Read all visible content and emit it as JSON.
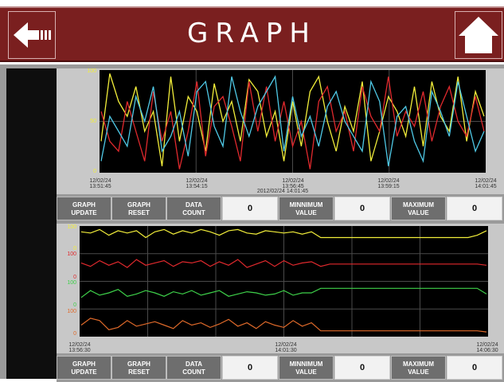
{
  "header": {
    "title": "GRAPH"
  },
  "top_chart": {
    "y_ticks": [
      "100",
      "50",
      "0"
    ],
    "x_ticks": [
      "12/02/24\n13:51:45",
      "12/02/24\n13:54:15",
      "12/02/24\n13:56:45",
      "12/02/24\n13:59:15",
      "12/02/24\n14:01:45"
    ],
    "cursor_label": "2012/02/24 14:01:45",
    "colors": {
      "yellow": "#f2ee3a",
      "red": "#e0292d",
      "cyan": "#4fc9e6"
    },
    "chart_data": {
      "type": "line",
      "ylim": [
        0,
        100
      ],
      "series": [
        {
          "values": [
            30,
            98,
            70,
            55,
            85,
            40,
            60,
            5,
            95,
            30,
            75,
            60,
            20,
            88,
            50,
            70,
            30,
            92,
            80,
            35,
            60,
            10,
            70,
            25,
            80,
            95,
            50,
            20,
            65,
            40,
            90,
            10,
            40,
            75,
            60,
            35,
            85,
            25,
            90,
            55,
            40,
            95,
            30,
            80,
            55
          ]
        },
        {
          "values": [
            60,
            30,
            20,
            70,
            40,
            10,
            80,
            30,
            60,
            2,
            40,
            90,
            15,
            65,
            75,
            45,
            10,
            90,
            40,
            85,
            30,
            70,
            25,
            50,
            2,
            70,
            85,
            40,
            60,
            20,
            85,
            55,
            40,
            95,
            35,
            60,
            45,
            80,
            30,
            65,
            85,
            50,
            35,
            75,
            40
          ]
        },
        {
          "values": [
            10,
            55,
            40,
            25,
            75,
            50,
            85,
            20,
            35,
            60,
            15,
            80,
            90,
            45,
            25,
            95,
            60,
            35,
            65,
            80,
            95,
            20,
            75,
            35,
            55,
            25,
            65,
            80,
            50,
            35,
            20,
            90,
            70,
            5,
            55,
            65,
            30,
            10,
            80,
            60,
            35,
            90,
            55,
            20,
            40
          ]
        }
      ]
    }
  },
  "bottom_chart": {
    "y_ticks": [
      "100",
      "0",
      "100",
      "0",
      "100",
      "0",
      "100",
      "0"
    ],
    "x_ticks": [
      "12/02/24\n13:56:30",
      "12/02/24\n14:01:30",
      "12/02/24\n14:06:30"
    ],
    "colors": {
      "yellow": "#f2ee3a",
      "red": "#e0292d",
      "green": "#3ed14a",
      "orange": "#e06a2a"
    },
    "chart_data": {
      "type": "line",
      "series": [
        {
          "values": [
            85,
            80,
            95,
            70,
            90,
            80,
            90,
            60,
            85,
            95,
            75,
            90,
            80,
            95,
            85,
            70,
            90,
            95,
            80,
            75,
            90,
            85,
            80,
            85,
            75,
            85,
            60,
            60,
            60,
            60,
            60,
            60,
            60,
            60,
            60,
            60,
            60,
            60,
            60,
            60,
            60,
            60,
            60,
            70,
            90
          ]
        },
        {
          "values": [
            70,
            55,
            80,
            60,
            75,
            50,
            85,
            60,
            70,
            80,
            55,
            75,
            70,
            80,
            55,
            75,
            60,
            85,
            50,
            65,
            80,
            55,
            80,
            60,
            70,
            75,
            55,
            65,
            65,
            65,
            65,
            65,
            65,
            65,
            65,
            65,
            65,
            65,
            65,
            65,
            65,
            65,
            65,
            65,
            60
          ]
        },
        {
          "values": [
            40,
            70,
            50,
            60,
            75,
            45,
            55,
            70,
            60,
            45,
            65,
            55,
            70,
            50,
            60,
            70,
            45,
            55,
            65,
            60,
            50,
            55,
            70,
            50,
            60,
            60,
            80,
            80,
            80,
            80,
            80,
            80,
            80,
            80,
            80,
            80,
            80,
            80,
            80,
            80,
            80,
            80,
            80,
            80,
            55
          ]
        },
        {
          "values": [
            40,
            70,
            60,
            20,
            30,
            60,
            35,
            45,
            55,
            40,
            25,
            60,
            40,
            50,
            30,
            45,
            65,
            35,
            50,
            25,
            55,
            40,
            30,
            60,
            35,
            50,
            15,
            15,
            15,
            15,
            15,
            15,
            15,
            15,
            15,
            15,
            15,
            15,
            15,
            15,
            15,
            15,
            15,
            15,
            10
          ]
        }
      ]
    }
  },
  "controls_top": {
    "graph_update": "GRAPH\nUPDATE",
    "graph_reset": "GRAPH\nRESET",
    "data_count_label": "DATA\nCOUNT",
    "data_count_value": "0",
    "min_label": "MINNIMUM\nVALUE",
    "min_value": "0",
    "max_label": "MAXIMUM\nVALUE",
    "max_value": "0"
  },
  "controls_bottom": {
    "graph_update": "GRAPH\nUPDATE",
    "graph_reset": "GRAPH\nRESET",
    "data_count_label": "DATA\nCOUNT",
    "data_count_value": "0",
    "min_label": "MINNIMUM\nVALUE",
    "min_value": "0",
    "max_label": "MAXIMUM\nVALUE",
    "max_value": "0"
  }
}
